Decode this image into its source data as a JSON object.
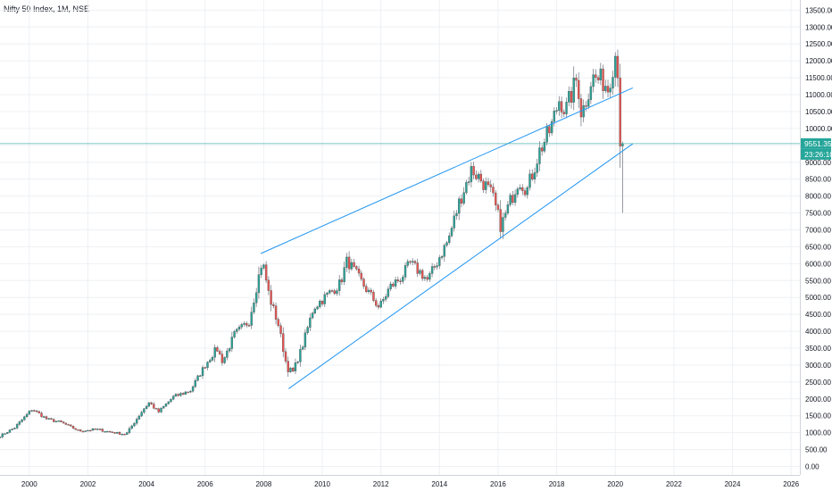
{
  "title": "Nifty 50 Index, 1M, NSE",
  "colors": {
    "up": "#26a69a",
    "down": "#ef5350",
    "trendline": "#2196f3",
    "price_line": "#26a69a",
    "price_tag": "#26a69a",
    "grid": "#eef0f4",
    "axis": "#cfd3db"
  },
  "price_label": "9551.35",
  "time_label": "23:26:10",
  "chart_data": {
    "type": "candlestick",
    "title": "Nifty 50 Index, 1M, NSE",
    "y_ticks": [
      0,
      500,
      1000,
      1500,
      2000,
      2500,
      3000,
      3500,
      4000,
      4500,
      5000,
      5500,
      6000,
      6500,
      7000,
      7500,
      8000,
      8500,
      9000,
      9500,
      10000,
      10500,
      11000,
      11500,
      12000,
      12500,
      13000,
      13500
    ],
    "y_tick_labels": [
      "0.00",
      "500.00",
      "1000.00",
      "1500.00",
      "2000.00",
      "2500.00",
      "3000.00",
      "3500.00",
      "4000.00",
      "4500.00",
      "5000.00",
      "5500.00",
      "6000.00",
      "6500.00",
      "7000.00",
      "7500.00",
      "8000.00",
      "8500.00",
      "9000.00",
      "9500.00",
      "10000.00",
      "10500.00",
      "11000.00",
      "11500.00",
      "12000.00",
      "12500.00",
      "13000.00",
      "13500.00"
    ],
    "x_ticks": [
      2000,
      2002,
      2004,
      2006,
      2008,
      2010,
      2012,
      2014,
      2016,
      2018,
      2020,
      2022,
      2024,
      2026
    ],
    "x_tick_labels": [
      "2000",
      "2002",
      "2004",
      "2006",
      "2008",
      "2010",
      "2012",
      "2014",
      "2016",
      "2018",
      "2020",
      "2022",
      "2024",
      "2026"
    ],
    "xlim": [
      1999.0,
      2026.3
    ],
    "ylim": [
      -250,
      13800
    ],
    "anchors": [
      [
        1999.0,
        900
      ],
      [
        1999.5,
        1150
      ],
      [
        2000.1,
        1700
      ],
      [
        2000.6,
        1400
      ],
      [
        2001.1,
        1300
      ],
      [
        2001.7,
        1050
      ],
      [
        2002.3,
        1100
      ],
      [
        2002.9,
        1000
      ],
      [
        2003.3,
        950
      ],
      [
        2003.9,
        1700
      ],
      [
        2004.1,
        1900
      ],
      [
        2004.4,
        1600
      ],
      [
        2004.9,
        2050
      ],
      [
        2005.5,
        2250
      ],
      [
        2006.0,
        3000
      ],
      [
        2006.4,
        3500
      ],
      [
        2006.6,
        3100
      ],
      [
        2007.0,
        3900
      ],
      [
        2007.5,
        4300
      ],
      [
        2007.8,
        5500
      ],
      [
        2007.95,
        6100
      ],
      [
        2008.2,
        5000
      ],
      [
        2008.5,
        4200
      ],
      [
        2008.8,
        2900
      ],
      [
        2009.0,
        2800
      ],
      [
        2009.3,
        3500
      ],
      [
        2009.7,
        4700
      ],
      [
        2010.2,
        5100
      ],
      [
        2010.6,
        5400
      ],
      [
        2010.85,
        6100
      ],
      [
        2011.3,
        5500
      ],
      [
        2011.7,
        5000
      ],
      [
        2011.95,
        4700
      ],
      [
        2012.3,
        5300
      ],
      [
        2012.7,
        5600
      ],
      [
        2013.0,
        6000
      ],
      [
        2013.4,
        5700
      ],
      [
        2013.6,
        5500
      ],
      [
        2014.0,
        6200
      ],
      [
        2014.3,
        6700
      ],
      [
        2014.7,
        7900
      ],
      [
        2015.1,
        8800
      ],
      [
        2015.5,
        8400
      ],
      [
        2015.8,
        8000
      ],
      [
        2016.1,
        7100
      ],
      [
        2016.4,
        7800
      ],
      [
        2016.7,
        8500
      ],
      [
        2017.0,
        8200
      ],
      [
        2017.4,
        9300
      ],
      [
        2017.8,
        10000
      ],
      [
        2018.1,
        10900
      ],
      [
        2018.3,
        10500
      ],
      [
        2018.7,
        11500
      ],
      [
        2018.85,
        10400
      ],
      [
        2019.2,
        11500
      ],
      [
        2019.6,
        11400
      ],
      [
        2019.75,
        11200
      ],
      [
        2020.0,
        12200
      ],
      [
        2020.1,
        11700
      ],
      [
        2020.2,
        8600
      ],
      [
        2020.27,
        9551
      ]
    ],
    "trendlines": [
      {
        "from": [
          2007.9,
          6300
        ],
        "to": [
          2020.6,
          11200
        ]
      },
      {
        "from": [
          2008.85,
          2300
        ],
        "to": [
          2020.6,
          9550
        ]
      }
    ],
    "last_price": 9551.35
  }
}
